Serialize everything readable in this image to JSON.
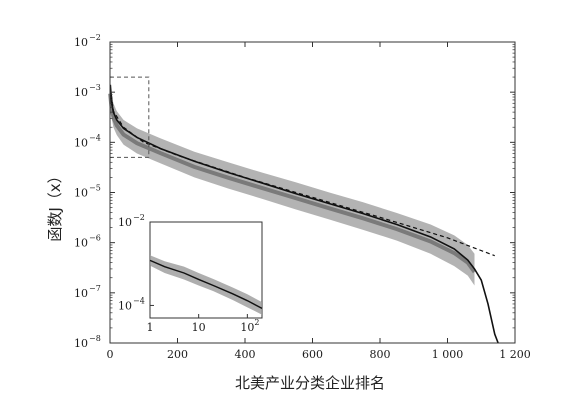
{
  "chart_data": {
    "type": "scatter",
    "title": "",
    "xlabel": "北美产业分类企业排名",
    "ylabel": "函数J（x）",
    "x_scale": "linear",
    "y_scale": "log",
    "xlim": [
      0,
      1200
    ],
    "ylim": [
      1e-08,
      0.01
    ],
    "x_ticks": [
      {
        "value": 0,
        "label": "0"
      },
      {
        "value": 200,
        "label": "200"
      },
      {
        "value": 400,
        "label": "400"
      },
      {
        "value": 600,
        "label": "600"
      },
      {
        "value": 800,
        "label": "800"
      },
      {
        "value": 1000,
        "label": "1 000"
      },
      {
        "value": 1200,
        "label": "1 200"
      }
    ],
    "y_ticks": [
      {
        "value": 0.01,
        "base": "10",
        "exp": "−2"
      },
      {
        "value": 0.001,
        "base": "10",
        "exp": "−3"
      },
      {
        "value": 0.0001,
        "base": "10",
        "exp": "−4"
      },
      {
        "value": 1e-05,
        "base": "10",
        "exp": "−5"
      },
      {
        "value": 1e-06,
        "base": "10",
        "exp": "−6"
      },
      {
        "value": 1e-07,
        "base": "10",
        "exp": "−7"
      },
      {
        "value": 1e-08,
        "base": "10",
        "exp": "−8"
      }
    ],
    "grid": false,
    "legend": "none",
    "colors": {
      "fit": "#111111",
      "band": "#9a9a9a",
      "band_dark": "#4a4a4a",
      "axis": "#333333",
      "zoom_box": "#555555"
    },
    "fit_line": {
      "x": [
        1,
        5,
        10,
        20,
        40,
        80,
        150,
        250,
        350,
        450,
        550,
        650,
        750,
        850,
        950,
        1020,
        1060,
        1080,
        1100,
        1120,
        1140,
        1150
      ],
      "y": [
        0.0014,
        0.0006,
        0.0004,
        0.00028,
        0.00019,
        0.000125,
        7.5e-05,
        4.2e-05,
        2.5e-05,
        1.55e-05,
        9.5e-06,
        6e-06,
        3.8e-06,
        2.3e-06,
        1.3e-06,
        7.5e-07,
        4.5e-07,
        3e-07,
        1.8e-07,
        6e-08,
        1.5e-08,
        1e-08
      ]
    },
    "dashed_line": {
      "x": [
        1,
        10,
        40,
        100,
        200,
        400,
        600,
        800,
        1000,
        1140
      ],
      "y": [
        0.0012,
        0.00042,
        0.0002,
        0.0001,
        5.5e-05,
        2e-05,
        8e-06,
        3.2e-06,
        1.25e-06,
        5.5e-07
      ]
    },
    "data_band": {
      "x": [
        0,
        5,
        10,
        20,
        40,
        80,
        150,
        250,
        350,
        450,
        550,
        650,
        750,
        850,
        950,
        1020,
        1060,
        1080
      ],
      "y_low": [
        0.0006,
        0.0003,
        0.0002,
        0.00014,
        9e-05,
        6e-05,
        3.8e-05,
        2e-05,
        1.2e-05,
        7.5e-06,
        4.6e-06,
        2.9e-06,
        1.8e-06,
        1.1e-06,
        6e-07,
        3.4e-07,
        2.2e-07,
        1.4e-07
      ],
      "y_high": [
        0.0018,
        0.0009,
        0.0006,
        0.00042,
        0.00028,
        0.00019,
        0.00012,
        6.5e-05,
        4e-05,
        2.5e-05,
        1.6e-05,
        1e-05,
        6.4e-06,
        3.9e-06,
        2.3e-06,
        1.4e-06,
        9e-07,
        6e-07
      ]
    },
    "zoom_region": {
      "x": [
        0,
        115
      ],
      "y": [
        5e-05,
        0.002
      ]
    },
    "inset": {
      "x_scale": "log",
      "y_scale": "log",
      "xlim": [
        1,
        200
      ],
      "ylim": [
        5e-05,
        0.01
      ],
      "x_ticks": [
        {
          "value": 1,
          "base": "1",
          "exp": ""
        },
        {
          "value": 10,
          "base": "10",
          "exp": ""
        },
        {
          "value": 100,
          "base": "10",
          "exp": "2"
        }
      ],
      "y_ticks": [
        {
          "value": 0.01,
          "base": "10",
          "exp": "−2"
        },
        {
          "value": 0.0001,
          "base": "10",
          "exp": "−4"
        }
      ],
      "fit_line": {
        "x": [
          1,
          2,
          5,
          10,
          20,
          50,
          100,
          200
        ],
        "y": [
          0.0012,
          0.00085,
          0.0006,
          0.00042,
          0.0003,
          0.00019,
          0.00013,
          8.5e-05
        ]
      },
      "data_band": {
        "x": [
          1,
          2,
          5,
          10,
          20,
          50,
          100,
          200
        ],
        "y_low": [
          0.0009,
          0.0006,
          0.00042,
          0.0003,
          0.00022,
          0.000135,
          9e-05,
          6e-05
        ],
        "y_high": [
          0.0016,
          0.00115,
          0.00085,
          0.0006,
          0.00043,
          0.00027,
          0.000185,
          0.00012
        ]
      }
    }
  }
}
